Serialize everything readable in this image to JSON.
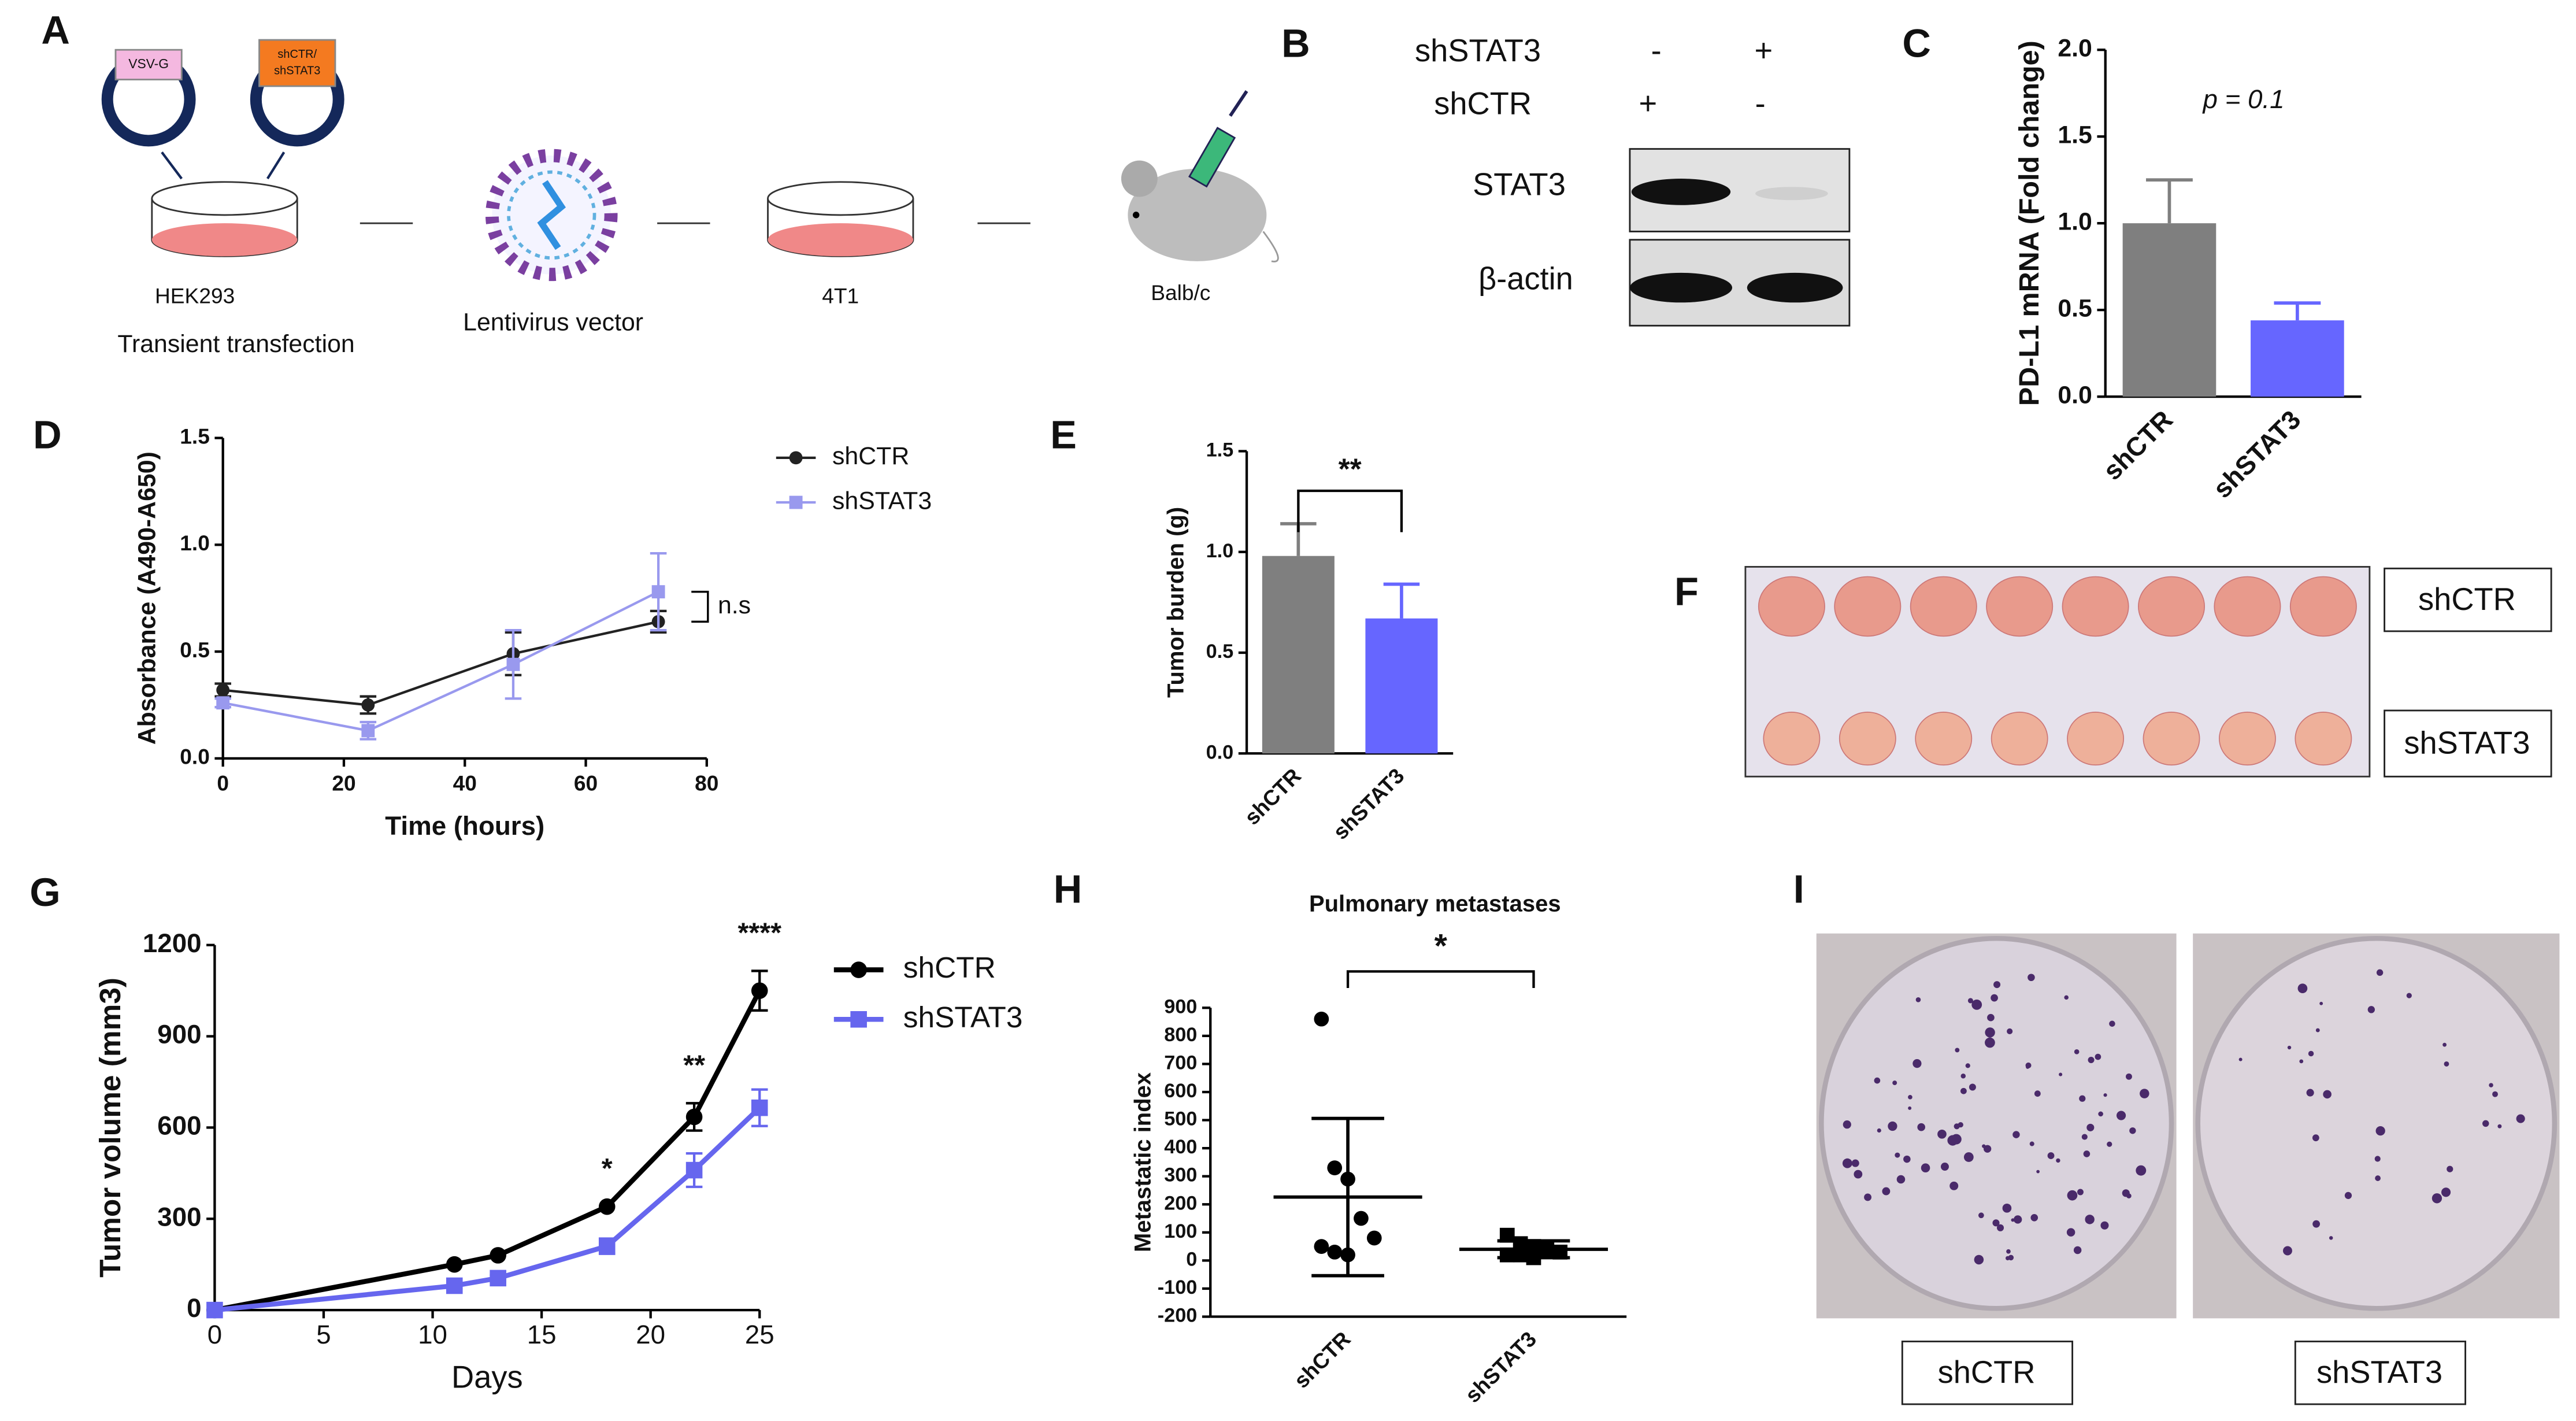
{
  "panel_labels": [
    "A",
    "B",
    "C",
    "D",
    "E",
    "F",
    "G",
    "H",
    "I"
  ],
  "diagram": {
    "vsvg": "VSV-G",
    "insert_top": "shCTR/",
    "insert_bottom": "shSTAT3",
    "dish": "HEK293",
    "step": "Transient transfection",
    "virus": "Lentivirus vector",
    "cells": "4T1",
    "mouse": "Balb/c"
  },
  "blot": {
    "rows": [
      "shSTAT3",
      "shCTR"
    ],
    "signs": [
      [
        "-",
        "+"
      ],
      [
        "+",
        "-"
      ]
    ],
    "bands": [
      "STAT3",
      "β-actin"
    ]
  },
  "photo_f": {
    "labels": [
      "shCTR",
      "shSTAT3"
    ]
  },
  "photo_i": {
    "labels": [
      "shCTR",
      "shSTAT3"
    ]
  },
  "chart_data": [
    {
      "type": "bar",
      "ylabel": "PD-L1 mRNA (Fold change)",
      "annotations": [
        "p = 0.1"
      ],
      "categories": [
        "shCTR",
        "shSTAT3"
      ],
      "values": [
        1.0,
        0.44
      ],
      "errors": [
        0.25,
        0.1
      ],
      "colors": [
        "#7f7f7f",
        "#6666ff"
      ],
      "ylim": [
        0,
        2
      ],
      "yticks": [
        {
          "value": 0,
          "label": "0.0"
        },
        {
          "value": 0.5,
          "label": "0.5"
        },
        {
          "value": 1,
          "label": "1.0"
        },
        {
          "value": 1.5,
          "label": "1.5"
        },
        {
          "value": 2,
          "label": "2.0"
        }
      ]
    },
    {
      "type": "line",
      "xlabel": "Time (hours)",
      "ylabel": "Absorbance (A490-A650)",
      "annotations": [
        "n.s"
      ],
      "x": [
        0,
        24,
        48,
        72
      ],
      "series": [
        {
          "name": "shCTR",
          "color": "#222222",
          "marker": "circle",
          "values": [
            0.32,
            0.25,
            0.49,
            0.64
          ],
          "errors": [
            0.03,
            0.04,
            0.1,
            0.05
          ]
        },
        {
          "name": "shSTAT3",
          "color": "#9999ee",
          "marker": "square",
          "values": [
            0.26,
            0.13,
            0.44,
            0.78
          ],
          "errors": [
            0.02,
            0.04,
            0.16,
            0.18
          ]
        }
      ],
      "xlim": [
        0,
        80
      ],
      "xticks": [
        0,
        20,
        40,
        60,
        80
      ],
      "ylim": [
        0,
        1.5
      ],
      "yticks": [
        {
          "value": 0,
          "label": "0.0"
        },
        {
          "value": 0.5,
          "label": "0.5"
        },
        {
          "value": 1,
          "label": "1.0"
        },
        {
          "value": 1.5,
          "label": "1.5"
        }
      ]
    },
    {
      "type": "bar",
      "ylabel": "Tumor burden (g)",
      "annotations": [
        "**"
      ],
      "categories": [
        "shCTR",
        "shSTAT3"
      ],
      "values": [
        0.98,
        0.67
      ],
      "errors": [
        0.16,
        0.17
      ],
      "colors": [
        "#7f7f7f",
        "#6666ff"
      ],
      "ylim": [
        0,
        1.5
      ],
      "yticks": [
        {
          "value": 0,
          "label": "0.0"
        },
        {
          "value": 0.5,
          "label": "0.5"
        },
        {
          "value": 1,
          "label": "1.0"
        },
        {
          "value": 1.5,
          "label": "1.5"
        }
      ]
    },
    {
      "type": "line",
      "xlabel": "Days",
      "ylabel": "Tumor volume (mm3)",
      "annotations": [
        "*",
        "**",
        "****"
      ],
      "x": [
        0,
        11,
        13,
        18,
        22,
        25
      ],
      "series": [
        {
          "name": "shCTR",
          "color": "#000000",
          "marker": "circle",
          "values": [
            0,
            150,
            180,
            340,
            635,
            1050
          ],
          "errors": [
            0,
            0,
            0,
            0,
            45,
            65
          ]
        },
        {
          "name": "shSTAT3",
          "color": "#6666ee",
          "marker": "square",
          "values": [
            0,
            80,
            105,
            210,
            460,
            665
          ],
          "errors": [
            0,
            10,
            10,
            25,
            55,
            60
          ]
        }
      ],
      "xlim": [
        0,
        25
      ],
      "xticks": [
        0,
        5,
        10,
        15,
        20,
        25
      ],
      "ylim": [
        0,
        1200
      ],
      "yticks": [
        0,
        300,
        600,
        900,
        1200
      ]
    },
    {
      "type": "scatter",
      "title": "Pulmonary metastases",
      "ylabel": "Metastatic index",
      "annotations": [
        "*"
      ],
      "categories": [
        "shCTR",
        "shSTAT3"
      ],
      "series": [
        {
          "name": "shCTR",
          "marker": "circle",
          "values": [
            860,
            330,
            290,
            150,
            80,
            50,
            30,
            20
          ],
          "mean": 226,
          "sd": 280
        },
        {
          "name": "shSTAT3",
          "marker": "square",
          "values": [
            90,
            60,
            50,
            40,
            30,
            20,
            20,
            10
          ],
          "mean": 40,
          "sd": 30
        }
      ],
      "ylim": [
        -200,
        900
      ],
      "yticks": [
        -200,
        -100,
        0,
        100,
        200,
        300,
        400,
        500,
        600,
        700,
        800,
        900
      ]
    }
  ]
}
